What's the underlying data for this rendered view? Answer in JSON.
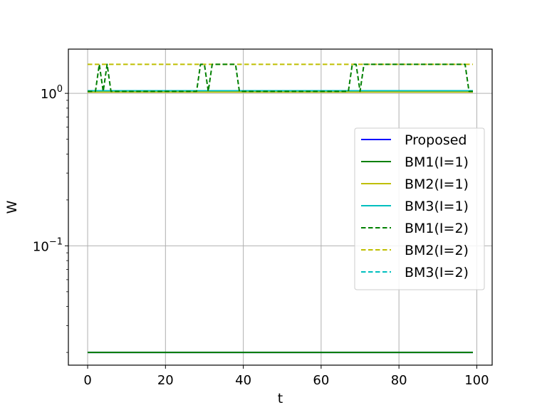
{
  "chart_data": {
    "type": "line",
    "title": "",
    "xlabel": "t",
    "ylabel": "W",
    "xlim": [
      -4.95,
      103.95
    ],
    "ylim": [
      0.0165,
      1.95
    ],
    "yscale": "log",
    "grid": true,
    "legend_position": "center-right",
    "x_ticks": [
      {
        "value": 0,
        "label": "0"
      },
      {
        "value": 20,
        "label": "20"
      },
      {
        "value": 40,
        "label": "40"
      },
      {
        "value": 60,
        "label": "60"
      },
      {
        "value": 80,
        "label": "80"
      },
      {
        "value": 100,
        "label": "100"
      }
    ],
    "y_ticks": [
      {
        "value": 1,
        "base": "10",
        "exp": "0"
      },
      {
        "value": 0.1,
        "base": "10",
        "exp": "−1"
      }
    ],
    "x": [
      0,
      99
    ],
    "series": [
      {
        "name": "Proposed",
        "color": "#0000ff",
        "dash": "solid",
        "points": [
          [
            0,
            0.02
          ],
          [
            99,
            0.02
          ]
        ]
      },
      {
        "name": "BM1(I=1)",
        "color": "#008000",
        "dash": "solid",
        "points": [
          [
            0,
            0.02
          ],
          [
            99,
            0.02
          ]
        ]
      },
      {
        "name": "BM2(I=1)",
        "color": "#bfbf00",
        "dash": "solid",
        "points": [
          [
            0,
            1.02
          ],
          [
            99,
            1.02
          ]
        ]
      },
      {
        "name": "BM3(I=1)",
        "color": "#00bfbf",
        "dash": "solid",
        "points": [
          [
            0,
            1.04
          ],
          [
            99,
            1.04
          ]
        ]
      },
      {
        "name": "BM1(I=2)",
        "color": "#008000",
        "dash": "dashed",
        "points": [
          [
            0,
            1.03
          ],
          [
            2,
            1.03
          ],
          [
            3,
            1.55
          ],
          [
            4,
            1.03
          ],
          [
            5,
            1.55
          ],
          [
            6,
            1.03
          ],
          [
            28,
            1.03
          ],
          [
            29,
            1.55
          ],
          [
            30,
            1.55
          ],
          [
            31,
            1.03
          ],
          [
            32,
            1.55
          ],
          [
            38,
            1.55
          ],
          [
            39,
            1.03
          ],
          [
            67,
            1.03
          ],
          [
            68,
            1.55
          ],
          [
            69,
            1.55
          ],
          [
            70,
            1.03
          ],
          [
            71,
            1.55
          ],
          [
            97,
            1.55
          ],
          [
            98,
            1.03
          ],
          [
            99,
            1.03
          ]
        ]
      },
      {
        "name": "BM2(I=2)",
        "color": "#bfbf00",
        "dash": "dashed",
        "points": [
          [
            0,
            1.55
          ],
          [
            99,
            1.55
          ]
        ]
      },
      {
        "name": "BM3(I=2)",
        "color": "#00bfbf",
        "dash": "dashed",
        "points": [
          [
            0,
            1.04
          ],
          [
            99,
            1.04
          ]
        ]
      }
    ]
  }
}
